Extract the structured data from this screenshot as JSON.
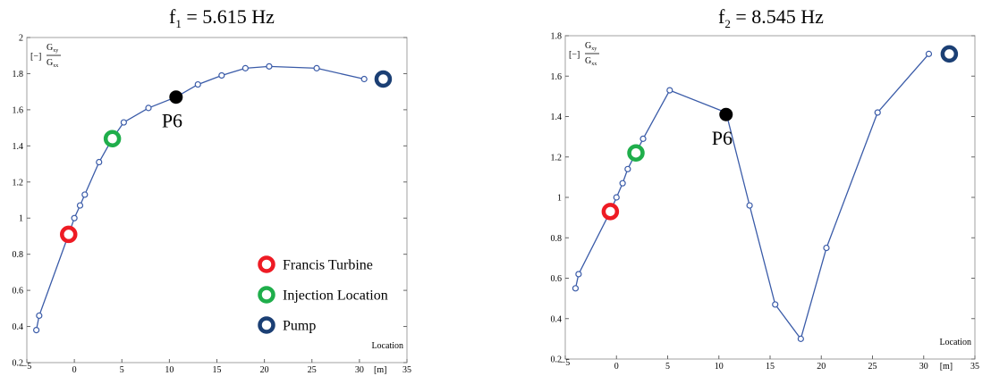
{
  "colors": {
    "series": "#3a5ba8",
    "francis": "#ee1b24",
    "injection": "#1fae4b",
    "pump": "#1b3f74",
    "p6": "#000000"
  },
  "legend": {
    "francis": "Francis Turbine",
    "injection": "Injection Location",
    "pump": "Pump"
  },
  "chart_data": [
    {
      "type": "line",
      "title": {
        "prefix": "f",
        "sub": "1",
        "suffix": " = 5.615 Hz"
      },
      "ylabel": {
        "unit": "[−]",
        "numerator": "G",
        "numerator_sub": "xy",
        "denominator": "G",
        "denominator_sub": "xx"
      },
      "xlabel": {
        "name": "Location",
        "unit": "[m]"
      },
      "xlim": [
        -5,
        35
      ],
      "ylim": [
        0.2,
        2
      ],
      "xticks": [
        -5,
        0,
        5,
        10,
        15,
        20,
        25,
        30,
        35
      ],
      "yticks": [
        0.2,
        0.4,
        0.6,
        0.8,
        1,
        1.2,
        1.4,
        1.6,
        1.8,
        2
      ],
      "x": [
        -4.0,
        -3.7,
        -0.6,
        0.0,
        0.6,
        1.1,
        2.6,
        4.0,
        5.2,
        7.8,
        10.7,
        13.0,
        15.5,
        18.0,
        20.5,
        25.5,
        30.5
      ],
      "y": [
        0.38,
        0.46,
        0.91,
        1.0,
        1.07,
        1.13,
        1.31,
        1.44,
        1.53,
        1.61,
        1.67,
        1.74,
        1.79,
        1.83,
        1.84,
        1.83,
        1.77
      ],
      "markers": [
        {
          "key": "francis",
          "x": -0.6,
          "y": 0.91
        },
        {
          "key": "injection",
          "x": 4.0,
          "y": 1.44
        },
        {
          "key": "p6",
          "x": 10.7,
          "y": 1.67,
          "label": "P6"
        },
        {
          "key": "pump",
          "x": 32.5,
          "y": 1.77
        }
      ],
      "show_legend": true
    },
    {
      "type": "line",
      "title": {
        "prefix": "f",
        "sub": "2",
        "suffix": " = 8.545 Hz"
      },
      "ylabel": {
        "unit": "[−]",
        "numerator": "G",
        "numerator_sub": "xy",
        "denominator": "G",
        "denominator_sub": "xx"
      },
      "xlabel": {
        "name": "Location",
        "unit": "[m]"
      },
      "xlim": [
        -5,
        35
      ],
      "ylim": [
        0.2,
        1.8
      ],
      "xticks": [
        -5,
        0,
        5,
        10,
        15,
        20,
        25,
        30,
        35
      ],
      "yticks": [
        0.2,
        0.4,
        0.6,
        0.8,
        1,
        1.2,
        1.4,
        1.6,
        1.8
      ],
      "x": [
        -4.0,
        -3.7,
        -0.6,
        0.0,
        0.6,
        1.1,
        1.9,
        2.6,
        5.2,
        10.7,
        13.0,
        15.5,
        18.0,
        20.5,
        25.5,
        30.5
      ],
      "y": [
        0.55,
        0.62,
        0.93,
        1.0,
        1.07,
        1.14,
        1.22,
        1.29,
        1.53,
        1.42,
        0.96,
        0.47,
        0.3,
        0.75,
        1.42,
        1.71
      ],
      "markers": [
        {
          "key": "francis",
          "x": -0.6,
          "y": 0.93
        },
        {
          "key": "injection",
          "x": 1.9,
          "y": 1.22
        },
        {
          "key": "p6",
          "x": 10.7,
          "y": 1.41,
          "label": "P6"
        },
        {
          "key": "pump",
          "x": 32.5,
          "y": 1.71
        }
      ],
      "show_legend": false
    }
  ]
}
